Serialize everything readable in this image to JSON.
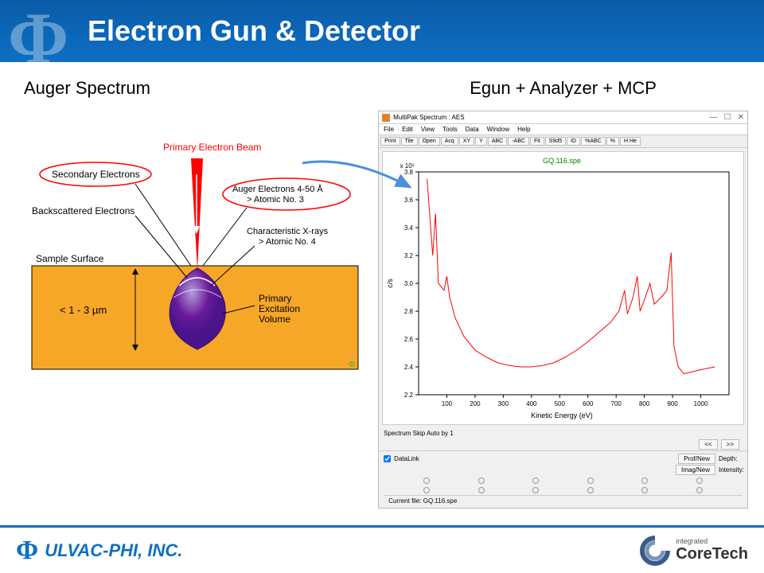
{
  "header": {
    "title": "Electron Gun & Detector"
  },
  "left": {
    "title": "Auger Spectrum",
    "labels": {
      "primary_beam": "Primary Electron Beam",
      "secondary": "Secondary Electrons",
      "backscattered": "Backscattered Electrons",
      "sample_surface": "Sample Surface",
      "auger_l1": "Auger Electrons 4-50 Å",
      "auger_l2": "> Atomic No. 3",
      "xray_l1": "Characteristic X-rays",
      "xray_l2": "> Atomic No. 4",
      "depth": "< 1 - 3 µm",
      "pev_l1": "Primary",
      "pev_l2": "Excitation",
      "pev_l3": "Volume"
    },
    "colors": {
      "beam": "#ff0000",
      "bulb_fill": "#6a1b9a",
      "bulb_highlight": "#b39ddb",
      "substrate": "#f7a728",
      "ellipse_stroke": "#ff0000",
      "arrow": "#000000"
    }
  },
  "right": {
    "title": "Egun + Analyzer + MCP",
    "app": {
      "title": "MultiPak Spectrum : AES",
      "menus": [
        "File",
        "Edit",
        "View",
        "Tools",
        "Data",
        "Window",
        "Help"
      ],
      "toolbar": [
        "Print",
        "Tile",
        "Open",
        "Acq",
        "XY",
        "Y",
        "ABC",
        "-ABC",
        "Fit",
        "S9d5",
        "ID",
        "%ABC",
        "%",
        "H He"
      ],
      "chart": {
        "title": "GQ.116.spe",
        "title_color": "#008000",
        "xlabel": "Kinetic Energy (eV)",
        "ylabel": "c/s",
        "y_exp": "× 10⁵",
        "xlim": [
          0,
          1100
        ],
        "ylim": [
          2.2,
          3.8
        ],
        "xticks": [
          100,
          200,
          300,
          400,
          500,
          600,
          700,
          800,
          900,
          1000
        ],
        "yticks": [
          2.2,
          2.4,
          2.6,
          2.8,
          3.0,
          3.2,
          3.4,
          3.6,
          3.8
        ],
        "line_color": "#ff0000",
        "bg": "#ffffff",
        "data": [
          [
            30,
            3.75
          ],
          [
            50,
            3.2
          ],
          [
            60,
            3.5
          ],
          [
            70,
            3.0
          ],
          [
            90,
            2.95
          ],
          [
            100,
            3.05
          ],
          [
            110,
            2.9
          ],
          [
            130,
            2.75
          ],
          [
            160,
            2.62
          ],
          [
            200,
            2.52
          ],
          [
            240,
            2.47
          ],
          [
            280,
            2.43
          ],
          [
            320,
            2.41
          ],
          [
            360,
            2.4
          ],
          [
            400,
            2.4
          ],
          [
            440,
            2.41
          ],
          [
            480,
            2.43
          ],
          [
            520,
            2.47
          ],
          [
            560,
            2.52
          ],
          [
            600,
            2.58
          ],
          [
            640,
            2.65
          ],
          [
            680,
            2.72
          ],
          [
            710,
            2.8
          ],
          [
            730,
            2.95
          ],
          [
            740,
            2.78
          ],
          [
            760,
            2.9
          ],
          [
            775,
            3.05
          ],
          [
            785,
            2.8
          ],
          [
            800,
            2.88
          ],
          [
            820,
            3.0
          ],
          [
            835,
            2.85
          ],
          [
            860,
            2.9
          ],
          [
            880,
            2.95
          ],
          [
            895,
            3.22
          ],
          [
            905,
            2.55
          ],
          [
            920,
            2.4
          ],
          [
            940,
            2.35
          ],
          [
            960,
            2.36
          ],
          [
            1000,
            2.38
          ],
          [
            1050,
            2.4
          ]
        ]
      },
      "status1": "Spectrum Skip Auto by 1",
      "nav": {
        "prev": "<<",
        "next": ">>"
      },
      "datalink": "DataLink",
      "buttons": {
        "profnew": "Prof/New",
        "imagnew": "Imag/New"
      },
      "labels": {
        "depth": "Depth:",
        "intensity": "Intensity:"
      },
      "status2": "Current file: GQ.116.spe"
    }
  },
  "footer": {
    "left": "ULVAC-PHI, INC.",
    "right_small": "integrated",
    "right_big": "CoreTech"
  },
  "arrow_color": "#4a90d9"
}
